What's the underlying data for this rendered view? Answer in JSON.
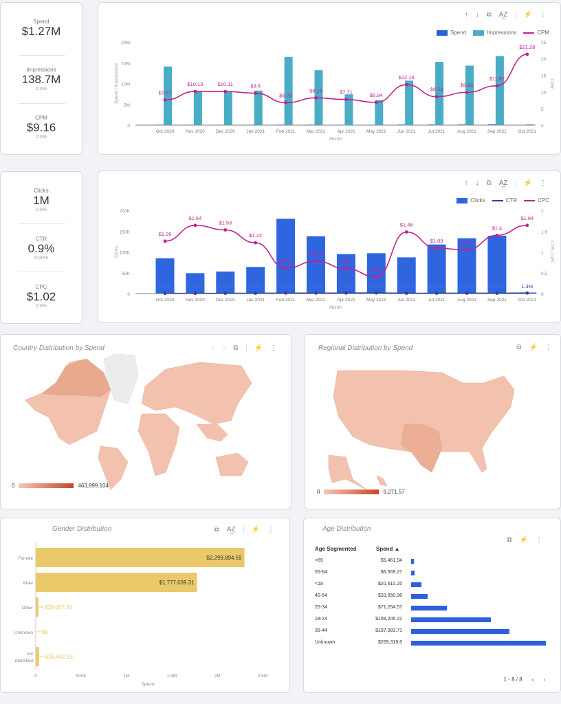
{
  "kpi1": [
    {
      "label": "Spend",
      "value": "$1.27M",
      "change": ""
    },
    {
      "label": "Impressions",
      "value": "138.7M",
      "change": "0.0%"
    },
    {
      "label": "CPM",
      "value": "$9.16",
      "change": "0.0%"
    }
  ],
  "kpi2": [
    {
      "label": "Clicks",
      "value": "1M",
      "change": "0.0%"
    },
    {
      "label": "CTR",
      "value": "0.9%",
      "change": "0.00%"
    },
    {
      "label": "CPC",
      "value": "$1.02",
      "change": "0.0%"
    }
  ],
  "icons": {
    "up": "↑",
    "down": "↓",
    "chart": "⧉",
    "sort": "A͢Z",
    "bolt": "⚡",
    "more": "⋮"
  },
  "colors": {
    "spend": "#2f5fdc",
    "impressions": "#4aacc5",
    "cpm": "#c2218f",
    "clicks": "#2f66e0",
    "ctr": "#2a3f9c",
    "cpc": "#c2218f",
    "gender": "#ebc96b",
    "age": "#2f5fdc",
    "map_low": "#f5c6b3",
    "map_high": "#c8472a"
  },
  "chart_data": [
    {
      "type": "bar+line",
      "xlabel": "Month",
      "ylabel": "Spend / Impressions",
      "y2label": "CPM",
      "categories": [
        "Oct 2020",
        "Nov 2020",
        "Dec 2020",
        "Jan 2021",
        "Feb 2021",
        "Mar 2021",
        "Apr 2021",
        "May 2021",
        "Jun 2021",
        "Jul 2021",
        "Aug 2021",
        "Sep 2021",
        "Oct 2021"
      ],
      "ylim": [
        0,
        20000000
      ],
      "yticks": [
        "0",
        "5M",
        "10M",
        "15M",
        "20M"
      ],
      "y2lim": [
        0,
        25
      ],
      "y2ticks": [
        "0",
        "5",
        "10",
        "15",
        "20",
        "25"
      ],
      "legend": "top-right",
      "series": [
        {
          "name": "Spend",
          "kind": "bar",
          "values": [
            107000,
            83000,
            81000,
            80000,
            110000,
            108000,
            57000,
            41000,
            130000,
            130000,
            141000,
            196000,
            5000
          ]
        },
        {
          "name": "Impressions",
          "kind": "bar",
          "values": [
            14100000,
            8200000,
            8100000,
            8300000,
            16400000,
            13200000,
            7400000,
            6000000,
            10700000,
            15200000,
            14300000,
            16600000,
            200000
          ]
        },
        {
          "name": "CPM",
          "kind": "line",
          "axis": "right",
          "values": [
            7.57,
            10.13,
            10.11,
            9.6,
            6.74,
            8.19,
            7.71,
            6.84,
            12.16,
            8.54,
            9.84,
            11.82,
            21.28
          ],
          "labels": [
            "$7.57",
            "$10.13",
            "$10.11",
            "$9.6",
            "$6.74",
            "$8.19",
            "$7.71",
            "$6.84",
            "$12.16",
            "$8.54",
            "$9.84",
            "$11.82",
            "$21.28"
          ]
        }
      ]
    },
    {
      "type": "bar+line",
      "xlabel": "Month",
      "ylabel": "Clicks",
      "y2label": "CTR / CPC",
      "categories": [
        "Oct 2020",
        "Nov 2020",
        "Dec 2020",
        "Jan 2021",
        "Feb 2021",
        "Mar 2021",
        "Apr 2021",
        "May 2021",
        "Jun 2021",
        "Jul 2021",
        "Aug 2021",
        "Sep 2021",
        "Oct 2021"
      ],
      "ylim": [
        0,
        200000
      ],
      "yticks": [
        "0",
        "50K",
        "100K",
        "150K",
        "200K"
      ],
      "y2lim": [
        0,
        2
      ],
      "y2ticks": [
        "0",
        "0.5",
        "1",
        "1.5",
        "2"
      ],
      "legend": "top-right",
      "series": [
        {
          "name": "Clicks",
          "kind": "bar",
          "values": [
            85000,
            49000,
            53000,
            64000,
            180000,
            138000,
            95000,
            97000,
            87000,
            118000,
            133000,
            139000,
            2500
          ]
        },
        {
          "name": "CTR",
          "kind": "line",
          "axis": "right",
          "values": [
            0.006,
            0.0062,
            0.0066,
            0.0079,
            0.0109,
            0.0106,
            0.0123,
            0.0157,
            0.0082,
            0.0078,
            0.0093,
            0.0084,
            0.013
          ],
          "labels": [
            "0.6%",
            "0.62%",
            "0.66%",
            "0.79%",
            "1.09%",
            "1.06%",
            "1.23%",
            "1.57%",
            "0.82%",
            "0.78%",
            "0.93%",
            "0.84%",
            "1.3%"
          ]
        },
        {
          "name": "CPC",
          "kind": "line",
          "axis": "right",
          "values": [
            1.26,
            1.64,
            1.53,
            1.22,
            0.61,
            0.78,
            0.6,
            0.4,
            1.48,
            1.09,
            1.05,
            1.4,
            1.64
          ],
          "labels": [
            "$1.26",
            "$1.64",
            "$1.53",
            "$1.22",
            "$0.61",
            "$0.78",
            "$0.6",
            "$0.4",
            "$1.48",
            "$1.09",
            "$1.05",
            "$1.4",
            "$1.64"
          ]
        }
      ]
    },
    {
      "type": "bar",
      "orientation": "horizontal",
      "title": "Gender Distribution",
      "xlabel": "Spend",
      "categories": [
        "Female",
        "Male",
        "Other",
        "Unknown",
        "not identified"
      ],
      "values": [
        2299894.59,
        1777039.31,
        29007.34,
        0,
        36442.53
      ],
      "labels": [
        "$2,299,894.59",
        "$1,777,039.31",
        "$29,007.34",
        "$0",
        "$36,442.53"
      ],
      "xlim": [
        0,
        2500000
      ],
      "xticks": [
        "0",
        "500K",
        "1M",
        "1.5M",
        "2M",
        "2.5M"
      ]
    },
    {
      "type": "table",
      "title": "Age Distribution",
      "columns": [
        "Age Segmented",
        "Spend ▲"
      ],
      "rows": [
        [
          ">65",
          5461.94,
          "$5,461.94"
        ],
        [
          "55-64",
          6569.27,
          "$6,569.27"
        ],
        [
          "<18",
          20610.25,
          "$20,610.25"
        ],
        [
          "45-54",
          33050.96,
          "$33,050.96"
        ],
        [
          "25-34",
          71254.57,
          "$71,254.57"
        ],
        [
          "18-24",
          159205.22,
          "$159,205.22"
        ],
        [
          "35-44",
          197083.71,
          "$197,083.71"
        ],
        [
          "Unknown",
          269319.9,
          "$269,319.9"
        ]
      ],
      "pager": "1 - 8 / 8"
    }
  ],
  "maps": {
    "country": {
      "title": "Country Distribution by Spend",
      "min": "0",
      "max": "463,899.104"
    },
    "region": {
      "title": "Regional Distribution by Spend",
      "min": "0",
      "max": "9,271.57"
    }
  },
  "gender_title": "Gender Distribution",
  "age_title": "Age Distribution"
}
